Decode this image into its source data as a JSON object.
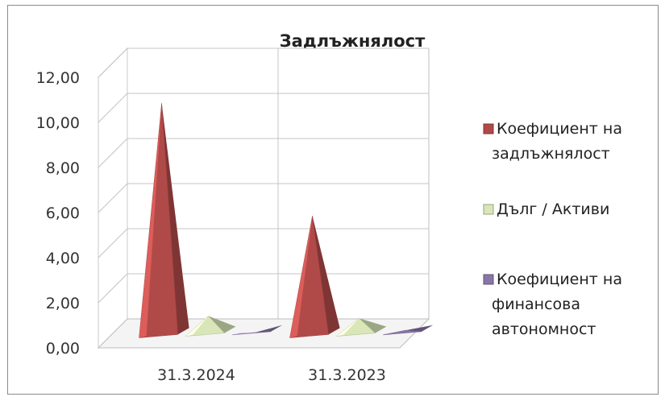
{
  "chart_data": {
    "type": "bar",
    "style": "3d-pyramid",
    "title": "Задлъжнялост",
    "categories": [
      "31.3.2024",
      "31.3.2023"
    ],
    "series": [
      {
        "name": "Коефициент на задлъжнялост",
        "values": [
          10.4,
          5.4
        ],
        "color": "#b04a48"
      },
      {
        "name": "Дълг / Активи",
        "values": [
          0.9,
          0.8
        ],
        "color": "#d9e6b8"
      },
      {
        "name": "Коефициент  на финансова автономност",
        "values": [
          0.1,
          0.2
        ],
        "color": "#8a75a8"
      }
    ],
    "legend_lines": [
      [
        "Коефициент на",
        "задлъжнялост"
      ],
      [
        "Дълг / Активи"
      ],
      [
        "Коефициент  на",
        "финансова",
        "автономност"
      ]
    ],
    "y_ticks": [
      "0,00",
      "2,00",
      "4,00",
      "6,00",
      "8,00",
      "10,00",
      "12,00"
    ],
    "ylim": [
      0,
      12
    ],
    "grid": true,
    "legend_position": "right"
  }
}
